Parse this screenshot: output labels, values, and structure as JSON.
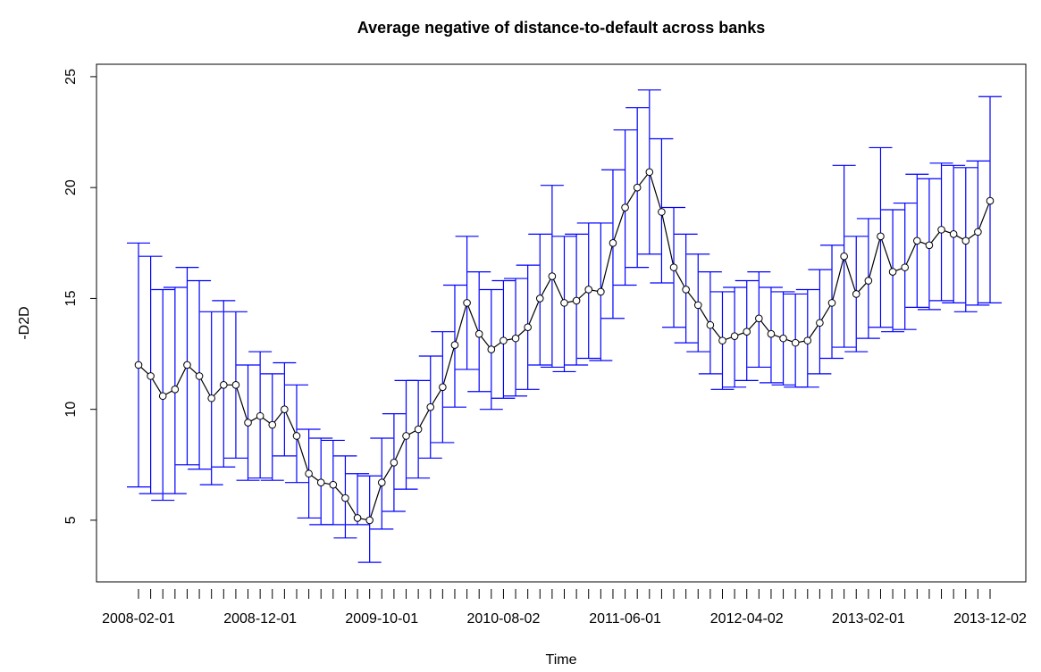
{
  "chart_data": {
    "type": "errorbar-line",
    "title": "Average negative of distance-to-default across banks",
    "x_label": "Time",
    "y_label": "-D2D",
    "categories": [
      "2008-02-01",
      null,
      null,
      null,
      null,
      null,
      null,
      null,
      null,
      null,
      "2008-12-01",
      null,
      null,
      null,
      null,
      null,
      null,
      null,
      null,
      null,
      "2009-10-01",
      null,
      null,
      null,
      null,
      null,
      null,
      null,
      null,
      null,
      "2010-08-02",
      null,
      null,
      null,
      null,
      null,
      null,
      null,
      null,
      null,
      "2011-06-01",
      null,
      null,
      null,
      null,
      null,
      null,
      null,
      null,
      null,
      "2012-04-02",
      null,
      null,
      null,
      null,
      null,
      null,
      null,
      null,
      null,
      "2013-02-01",
      null,
      null,
      null,
      null,
      null,
      null,
      null,
      null,
      null,
      "2013-12-02"
    ],
    "values": [
      12.0,
      11.5,
      10.6,
      10.9,
      12.0,
      11.5,
      10.5,
      11.1,
      11.1,
      9.4,
      9.7,
      9.3,
      10.0,
      8.8,
      7.1,
      6.7,
      6.6,
      6.0,
      5.1,
      5.0,
      6.7,
      7.6,
      8.8,
      9.1,
      10.1,
      11.0,
      12.9,
      14.8,
      13.4,
      12.7,
      13.1,
      13.2,
      13.7,
      15.0,
      16.0,
      14.8,
      14.9,
      15.4,
      15.3,
      17.5,
      19.1,
      20.0,
      20.7,
      18.9,
      16.4,
      15.4,
      14.7,
      13.8,
      13.1,
      13.3,
      13.5,
      14.1,
      13.4,
      13.2,
      13.0,
      13.1,
      13.9,
      14.8,
      16.9,
      15.2,
      15.8,
      17.8,
      16.2,
      16.4,
      17.6,
      17.4,
      18.1,
      17.9,
      17.6,
      18.0,
      19.4
    ],
    "upper": [
      17.5,
      16.9,
      15.4,
      15.5,
      16.4,
      15.8,
      14.4,
      14.9,
      14.4,
      12.0,
      12.6,
      11.6,
      12.1,
      11.1,
      9.1,
      8.7,
      8.6,
      7.9,
      7.1,
      7.0,
      8.7,
      9.8,
      11.3,
      11.3,
      12.4,
      13.5,
      15.6,
      17.8,
      16.2,
      15.4,
      15.8,
      15.9,
      16.5,
      17.9,
      20.1,
      17.8,
      17.9,
      18.4,
      18.4,
      20.8,
      22.6,
      23.6,
      24.4,
      22.2,
      19.1,
      17.9,
      17.0,
      16.2,
      15.3,
      15.5,
      15.8,
      16.2,
      15.5,
      15.3,
      15.2,
      15.4,
      16.3,
      17.4,
      21.0,
      17.8,
      18.6,
      21.8,
      19.0,
      19.3,
      20.6,
      20.4,
      21.1,
      21.0,
      20.9,
      21.2,
      24.1
    ],
    "lower": [
      6.5,
      6.2,
      5.9,
      6.2,
      7.5,
      7.3,
      6.6,
      7.4,
      7.8,
      6.8,
      6.9,
      6.8,
      7.9,
      6.7,
      5.1,
      4.8,
      4.8,
      4.2,
      4.8,
      3.1,
      4.6,
      5.4,
      6.4,
      6.9,
      7.8,
      8.5,
      10.1,
      11.8,
      10.8,
      10.0,
      10.5,
      10.6,
      10.9,
      12.0,
      11.9,
      11.7,
      12.0,
      12.3,
      12.2,
      14.1,
      15.6,
      16.4,
      17.0,
      15.7,
      13.7,
      13.0,
      12.6,
      11.6,
      10.9,
      11.0,
      11.3,
      11.9,
      11.2,
      11.1,
      11.0,
      11.0,
      11.6,
      12.3,
      12.8,
      12.6,
      13.2,
      13.7,
      13.5,
      13.6,
      14.6,
      14.5,
      14.9,
      14.8,
      14.4,
      14.7,
      14.8
    ],
    "line_color": "#000000",
    "bar_color": "#0000ff",
    "ylim": [
      2.22,
      25.56
    ],
    "yticks": [
      5,
      10,
      15,
      20,
      25
    ]
  }
}
